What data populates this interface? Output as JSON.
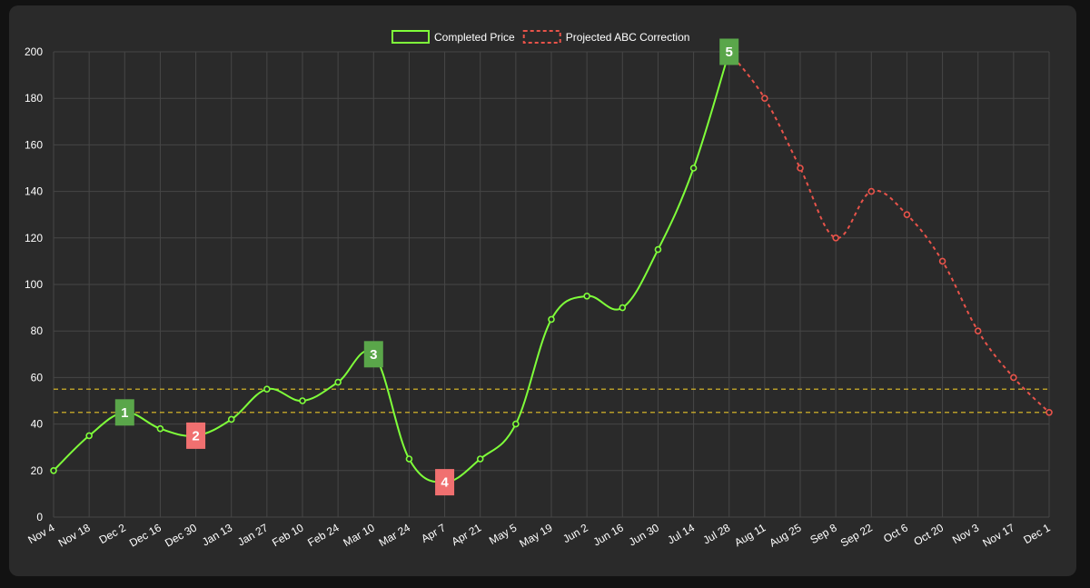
{
  "chart_data": {
    "type": "line",
    "categories": [
      "Nov 4",
      "Nov 18",
      "Dec 2",
      "Dec 16",
      "Dec 30",
      "Jan 13",
      "Jan 27",
      "Feb 10",
      "Feb 24",
      "Mar 10",
      "Mar 24",
      "Apr 7",
      "Apr 21",
      "May 5",
      "May 19",
      "Jun 2",
      "Jun 16",
      "Jun 30",
      "Jul 14",
      "Jul 28",
      "Aug 11",
      "Aug 25",
      "Sep 8",
      "Sep 22",
      "Oct 6",
      "Oct 20",
      "Nov 3",
      "Nov 17",
      "Dec 1"
    ],
    "ylim": [
      0,
      200
    ],
    "yticks": [
      0,
      20,
      40,
      60,
      80,
      100,
      120,
      140,
      160,
      180,
      200
    ],
    "grid": true,
    "legend_position": "top-center",
    "series": [
      {
        "name": "Completed Price",
        "color": "#7fff3a",
        "style": "solid",
        "values": [
          20,
          35,
          45,
          38,
          35,
          42,
          55,
          50,
          58,
          70,
          25,
          15,
          25,
          40,
          85,
          95,
          90,
          115,
          150,
          200,
          null,
          null,
          null,
          null,
          null,
          null,
          null,
          null,
          null
        ]
      },
      {
        "name": "Projected ABC Correction",
        "color": "#e8534a",
        "style": "dashed",
        "values": [
          null,
          null,
          null,
          null,
          null,
          null,
          null,
          null,
          null,
          null,
          null,
          null,
          null,
          null,
          null,
          null,
          null,
          null,
          null,
          200,
          180,
          150,
          120,
          140,
          130,
          110,
          80,
          60,
          45
        ]
      }
    ],
    "reference_lines": [
      {
        "y": 55,
        "color": "#e6c229",
        "style": "dashed"
      },
      {
        "y": 45,
        "color": "#e6c229",
        "style": "dashed"
      }
    ],
    "annotations": [
      {
        "text": "1",
        "x": "Dec 2",
        "y": 45,
        "color": "#5aa64a"
      },
      {
        "text": "2",
        "x": "Dec 30",
        "y": 35,
        "color": "#f07070"
      },
      {
        "text": "3",
        "x": "Mar 10",
        "y": 70,
        "color": "#5aa64a"
      },
      {
        "text": "4",
        "x": "Apr 7",
        "y": 15,
        "color": "#f07070"
      },
      {
        "text": "5",
        "x": "Jul 28",
        "y": 200,
        "color": "#5aa64a"
      }
    ]
  }
}
